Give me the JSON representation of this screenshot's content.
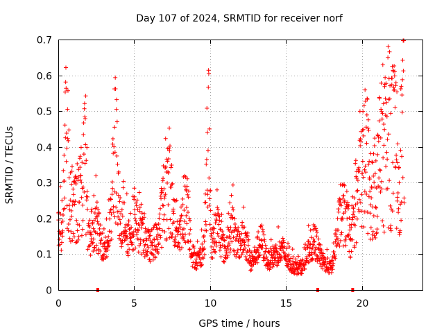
{
  "chart_data": {
    "type": "scatter",
    "title": "Day 107 of 2024, SRMTID for receiver norf",
    "xlabel": "GPS time / hours",
    "ylabel": "SRMTID / TECUs",
    "xlim": [
      0,
      24
    ],
    "ylim": [
      0,
      0.7
    ],
    "xticks": [
      0,
      5,
      10,
      15,
      20
    ],
    "xtick_labels": [
      "0",
      "5",
      "10",
      "15",
      "20"
    ],
    "yticks": [
      0,
      0.1,
      0.2,
      0.3,
      0.4,
      0.5,
      0.6,
      0.7
    ],
    "ytick_labels": [
      "0",
      "0.1",
      "0.2",
      "0.3",
      "0.4",
      "0.5",
      "0.6",
      "0.7"
    ],
    "grid": true,
    "marker": "+",
    "marker_color": "#ff0000",
    "series": [
      {
        "name": "norf SRMTID",
        "profile": [
          {
            "x": 0.0,
            "y": 0.16
          },
          {
            "x": 0.3,
            "y": 0.2
          },
          {
            "x": 0.55,
            "y": 0.45
          },
          {
            "x": 0.8,
            "y": 0.24
          },
          {
            "x": 1.2,
            "y": 0.22
          },
          {
            "x": 1.6,
            "y": 0.3
          },
          {
            "x": 1.8,
            "y": 0.38
          },
          {
            "x": 2.0,
            "y": 0.13
          },
          {
            "x": 2.4,
            "y": 0.2
          },
          {
            "x": 2.8,
            "y": 0.14
          },
          {
            "x": 3.2,
            "y": 0.12
          },
          {
            "x": 3.5,
            "y": 0.2
          },
          {
            "x": 3.75,
            "y": 0.46
          },
          {
            "x": 4.0,
            "y": 0.18
          },
          {
            "x": 4.3,
            "y": 0.22
          },
          {
            "x": 4.6,
            "y": 0.15
          },
          {
            "x": 5.0,
            "y": 0.2
          },
          {
            "x": 5.5,
            "y": 0.16
          },
          {
            "x": 6.0,
            "y": 0.12
          },
          {
            "x": 6.5,
            "y": 0.14
          },
          {
            "x": 7.0,
            "y": 0.25
          },
          {
            "x": 7.3,
            "y": 0.31
          },
          {
            "x": 7.6,
            "y": 0.2
          },
          {
            "x": 8.0,
            "y": 0.16
          },
          {
            "x": 8.5,
            "y": 0.26
          },
          {
            "x": 8.8,
            "y": 0.1
          },
          {
            "x": 9.2,
            "y": 0.08
          },
          {
            "x": 9.6,
            "y": 0.12
          },
          {
            "x": 9.9,
            "y": 0.4
          },
          {
            "x": 10.1,
            "y": 0.12
          },
          {
            "x": 10.5,
            "y": 0.18
          },
          {
            "x": 11.0,
            "y": 0.1
          },
          {
            "x": 11.4,
            "y": 0.2
          },
          {
            "x": 11.8,
            "y": 0.12
          },
          {
            "x": 12.3,
            "y": 0.15
          },
          {
            "x": 12.7,
            "y": 0.07
          },
          {
            "x": 13.0,
            "y": 0.1
          },
          {
            "x": 13.4,
            "y": 0.14
          },
          {
            "x": 13.8,
            "y": 0.08
          },
          {
            "x": 14.3,
            "y": 0.1
          },
          {
            "x": 14.8,
            "y": 0.11
          },
          {
            "x": 15.3,
            "y": 0.07
          },
          {
            "x": 15.8,
            "y": 0.06
          },
          {
            "x": 16.2,
            "y": 0.07
          },
          {
            "x": 16.6,
            "y": 0.12
          },
          {
            "x": 17.0,
            "y": 0.13
          },
          {
            "x": 17.4,
            "y": 0.08
          },
          {
            "x": 18.0,
            "y": 0.06
          },
          {
            "x": 18.3,
            "y": 0.14
          },
          {
            "x": 18.7,
            "y": 0.22
          },
          {
            "x": 19.0,
            "y": 0.2
          },
          {
            "x": 19.3,
            "y": 0.13
          },
          {
            "x": 19.7,
            "y": 0.25
          },
          {
            "x": 20.0,
            "y": 0.33
          },
          {
            "x": 20.3,
            "y": 0.38
          },
          {
            "x": 20.6,
            "y": 0.26
          },
          {
            "x": 21.0,
            "y": 0.3
          },
          {
            "x": 21.4,
            "y": 0.4
          },
          {
            "x": 21.8,
            "y": 0.42
          },
          {
            "x": 22.2,
            "y": 0.4
          },
          {
            "x": 22.5,
            "y": 0.32
          },
          {
            "x": 22.8,
            "y": 0.55
          }
        ]
      }
    ],
    "x_axis_markers": [
      2.6,
      17.1,
      19.4
    ]
  }
}
